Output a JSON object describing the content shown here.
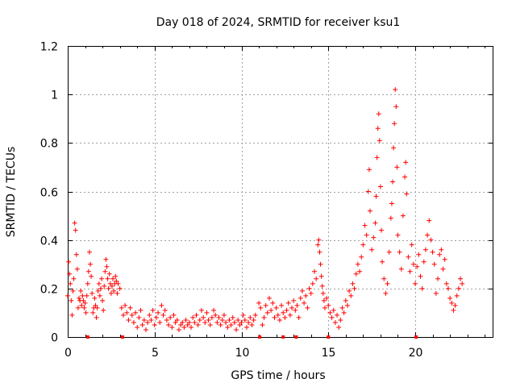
{
  "chart_data": {
    "type": "scatter",
    "title": "Day 018 of 2024, SRMTID for receiver ksu1",
    "xlabel": "GPS time / hours",
    "ylabel": "SRMTID / TECUs",
    "xlim": [
      0,
      24.5
    ],
    "ylim": [
      0,
      1.2
    ],
    "xticks": [
      0,
      5,
      10,
      15,
      20
    ],
    "xtick_labels": [
      "0",
      "5",
      "10",
      "15",
      "20"
    ],
    "yticks": [
      0,
      0.2,
      0.4,
      0.6,
      0.8,
      1.0,
      1.2
    ],
    "ytick_labels": [
      "0",
      "0.2",
      "0.4",
      "0.6",
      "0.8",
      "1",
      "1.2"
    ],
    "grid": true,
    "marker": "+",
    "color": "#ff0000",
    "series": [
      {
        "name": "SRMTID",
        "points": [
          [
            0.0,
            0.17
          ],
          [
            0.05,
            0.31
          ],
          [
            0.1,
            0.26
          ],
          [
            0.15,
            0.22
          ],
          [
            0.2,
            0.15
          ],
          [
            0.25,
            0.09
          ],
          [
            0.3,
            0.19
          ],
          [
            0.35,
            0.24
          ],
          [
            0.4,
            0.47
          ],
          [
            0.45,
            0.44
          ],
          [
            0.5,
            0.34
          ],
          [
            0.55,
            0.28
          ],
          [
            0.6,
            0.12
          ],
          [
            0.65,
            0.16
          ],
          [
            0.7,
            0.15
          ],
          [
            0.75,
            0.19
          ],
          [
            0.8,
            0.13
          ],
          [
            0.85,
            0.17
          ],
          [
            0.9,
            0.15
          ],
          [
            0.95,
            0.12
          ],
          [
            1.0,
            0.14
          ],
          [
            1.05,
            0.1
          ],
          [
            1.1,
            0.17
          ],
          [
            1.15,
            0.22
          ],
          [
            1.2,
            0.27
          ],
          [
            1.25,
            0.35
          ],
          [
            1.3,
            0.3
          ],
          [
            1.35,
            0.25
          ],
          [
            1.4,
            0.18
          ],
          [
            1.45,
            0.1
          ],
          [
            1.5,
            0.12
          ],
          [
            1.55,
            0.16
          ],
          [
            1.6,
            0.13
          ],
          [
            1.65,
            0.08
          ],
          [
            1.7,
            0.12
          ],
          [
            1.75,
            0.19
          ],
          [
            1.8,
            0.22
          ],
          [
            1.85,
            0.17
          ],
          [
            1.9,
            0.2
          ],
          [
            1.95,
            0.24
          ],
          [
            2.0,
            0.15
          ],
          [
            2.05,
            0.11
          ],
          [
            2.1,
            0.21
          ],
          [
            2.15,
            0.27
          ],
          [
            2.2,
            0.32
          ],
          [
            2.25,
            0.29
          ],
          [
            2.3,
            0.24
          ],
          [
            2.35,
            0.2
          ],
          [
            2.4,
            0.26
          ],
          [
            2.45,
            0.22
          ],
          [
            2.5,
            0.18
          ],
          [
            2.55,
            0.21
          ],
          [
            2.6,
            0.24
          ],
          [
            2.65,
            0.19
          ],
          [
            2.7,
            0.22
          ],
          [
            2.75,
            0.25
          ],
          [
            2.8,
            0.23
          ],
          [
            2.85,
            0.18
          ],
          [
            2.9,
            0.22
          ],
          [
            3.0,
            0.2
          ],
          [
            3.1,
            0.12
          ],
          [
            3.2,
            0.09
          ],
          [
            3.3,
            0.13
          ],
          [
            3.4,
            0.1
          ],
          [
            3.5,
            0.07
          ],
          [
            3.6,
            0.12
          ],
          [
            3.7,
            0.09
          ],
          [
            3.8,
            0.06
          ],
          [
            3.9,
            0.1
          ],
          [
            4.0,
            0.04
          ],
          [
            4.1,
            0.08
          ],
          [
            4.2,
            0.11
          ],
          [
            4.3,
            0.05
          ],
          [
            4.4,
            0.07
          ],
          [
            4.5,
            0.03
          ],
          [
            4.6,
            0.06
          ],
          [
            4.7,
            0.09
          ],
          [
            4.8,
            0.07
          ],
          [
            4.9,
            0.11
          ],
          [
            5.0,
            0.05
          ],
          [
            5.1,
            0.08
          ],
          [
            5.2,
            0.1
          ],
          [
            5.3,
            0.06
          ],
          [
            5.4,
            0.13
          ],
          [
            5.5,
            0.09
          ],
          [
            5.6,
            0.11
          ],
          [
            5.7,
            0.07
          ],
          [
            5.8,
            0.05
          ],
          [
            5.9,
            0.08
          ],
          [
            6.0,
            0.04
          ],
          [
            6.1,
            0.09
          ],
          [
            6.2,
            0.06
          ],
          [
            6.3,
            0.07
          ],
          [
            6.4,
            0.03
          ],
          [
            6.5,
            0.05
          ],
          [
            6.6,
            0.06
          ],
          [
            6.7,
            0.04
          ],
          [
            6.8,
            0.07
          ],
          [
            6.9,
            0.05
          ],
          [
            7.0,
            0.06
          ],
          [
            7.1,
            0.04
          ],
          [
            7.2,
            0.08
          ],
          [
            7.3,
            0.06
          ],
          [
            7.4,
            0.09
          ],
          [
            7.5,
            0.05
          ],
          [
            7.6,
            0.07
          ],
          [
            7.7,
            0.11
          ],
          [
            7.8,
            0.08
          ],
          [
            7.9,
            0.06
          ],
          [
            8.0,
            0.1
          ],
          [
            8.1,
            0.07
          ],
          [
            8.2,
            0.05
          ],
          [
            8.3,
            0.08
          ],
          [
            8.4,
            0.11
          ],
          [
            8.5,
            0.09
          ],
          [
            8.6,
            0.06
          ],
          [
            8.7,
            0.08
          ],
          [
            8.8,
            0.05
          ],
          [
            8.9,
            0.07
          ],
          [
            9.0,
            0.09
          ],
          [
            9.1,
            0.06
          ],
          [
            9.2,
            0.04
          ],
          [
            9.3,
            0.07
          ],
          [
            9.4,
            0.05
          ],
          [
            9.5,
            0.08
          ],
          [
            9.6,
            0.06
          ],
          [
            9.7,
            0.03
          ],
          [
            9.8,
            0.07
          ],
          [
            9.9,
            0.05
          ],
          [
            10.0,
            0.06
          ],
          [
            10.1,
            0.09
          ],
          [
            10.2,
            0.07
          ],
          [
            10.3,
            0.04
          ],
          [
            10.4,
            0.06
          ],
          [
            10.5,
            0.08
          ],
          [
            10.6,
            0.05
          ],
          [
            10.7,
            0.07
          ],
          [
            10.8,
            0.09
          ],
          [
            11.0,
            0.14
          ],
          [
            11.1,
            0.12
          ],
          [
            11.2,
            0.05
          ],
          [
            11.3,
            0.08
          ],
          [
            11.4,
            0.13
          ],
          [
            11.5,
            0.1
          ],
          [
            11.6,
            0.16
          ],
          [
            11.7,
            0.11
          ],
          [
            11.8,
            0.14
          ],
          [
            11.9,
            0.08
          ],
          [
            12.0,
            0.12
          ],
          [
            12.1,
            0.09
          ],
          [
            12.2,
            0.07
          ],
          [
            12.3,
            0.13
          ],
          [
            12.4,
            0.1
          ],
          [
            12.5,
            0.08
          ],
          [
            12.6,
            0.11
          ],
          [
            12.7,
            0.14
          ],
          [
            12.8,
            0.09
          ],
          [
            12.9,
            0.12
          ],
          [
            13.0,
            0.15
          ],
          [
            13.1,
            0.11
          ],
          [
            13.2,
            0.13
          ],
          [
            13.3,
            0.08
          ],
          [
            13.4,
            0.16
          ],
          [
            13.5,
            0.19
          ],
          [
            13.6,
            0.14
          ],
          [
            13.7,
            0.17
          ],
          [
            13.8,
            0.12
          ],
          [
            13.9,
            0.2
          ],
          [
            14.0,
            0.18
          ],
          [
            14.1,
            0.22
          ],
          [
            14.2,
            0.27
          ],
          [
            14.3,
            0.24
          ],
          [
            14.4,
            0.38
          ],
          [
            14.45,
            0.4
          ],
          [
            14.5,
            0.35
          ],
          [
            14.55,
            0.3
          ],
          [
            14.6,
            0.25
          ],
          [
            14.65,
            0.21
          ],
          [
            14.7,
            0.18
          ],
          [
            14.75,
            0.15
          ],
          [
            14.8,
            0.12
          ],
          [
            14.9,
            0.16
          ],
          [
            15.0,
            0.13
          ],
          [
            15.1,
            0.1
          ],
          [
            15.2,
            0.08
          ],
          [
            15.3,
            0.11
          ],
          [
            15.4,
            0.06
          ],
          [
            15.5,
            0.09
          ],
          [
            15.6,
            0.04
          ],
          [
            15.7,
            0.07
          ],
          [
            15.8,
            0.12
          ],
          [
            15.9,
            0.1
          ],
          [
            16.0,
            0.15
          ],
          [
            16.1,
            0.13
          ],
          [
            16.2,
            0.19
          ],
          [
            16.3,
            0.17
          ],
          [
            16.4,
            0.22
          ],
          [
            16.5,
            0.2
          ],
          [
            16.6,
            0.26
          ],
          [
            16.7,
            0.3
          ],
          [
            16.8,
            0.27
          ],
          [
            16.9,
            0.33
          ],
          [
            17.0,
            0.38
          ],
          [
            17.1,
            0.46
          ],
          [
            17.2,
            0.42
          ],
          [
            17.3,
            0.6
          ],
          [
            17.35,
            0.69
          ],
          [
            17.4,
            0.52
          ],
          [
            17.5,
            0.36
          ],
          [
            17.6,
            0.41
          ],
          [
            17.7,
            0.47
          ],
          [
            17.75,
            0.58
          ],
          [
            17.8,
            0.74
          ],
          [
            17.85,
            0.86
          ],
          [
            17.9,
            0.92
          ],
          [
            17.95,
            0.81
          ],
          [
            18.0,
            0.62
          ],
          [
            18.05,
            0.44
          ],
          [
            18.1,
            0.31
          ],
          [
            18.2,
            0.24
          ],
          [
            18.3,
            0.18
          ],
          [
            18.4,
            0.22
          ],
          [
            18.5,
            0.35
          ],
          [
            18.6,
            0.49
          ],
          [
            18.65,
            0.55
          ],
          [
            18.7,
            0.64
          ],
          [
            18.75,
            0.78
          ],
          [
            18.8,
            0.88
          ],
          [
            18.85,
            1.02
          ],
          [
            18.9,
            0.95
          ],
          [
            18.95,
            0.7
          ],
          [
            19.0,
            0.42
          ],
          [
            19.1,
            0.35
          ],
          [
            19.2,
            0.28
          ],
          [
            19.3,
            0.5
          ],
          [
            19.4,
            0.66
          ],
          [
            19.45,
            0.72
          ],
          [
            19.5,
            0.59
          ],
          [
            19.6,
            0.33
          ],
          [
            19.7,
            0.27
          ],
          [
            19.8,
            0.38
          ],
          [
            19.9,
            0.3
          ],
          [
            20.0,
            0.22
          ],
          [
            20.1,
            0.29
          ],
          [
            20.2,
            0.34
          ],
          [
            20.3,
            0.25
          ],
          [
            20.4,
            0.2
          ],
          [
            20.5,
            0.31
          ],
          [
            20.6,
            0.36
          ],
          [
            20.7,
            0.42
          ],
          [
            20.8,
            0.48
          ],
          [
            20.9,
            0.4
          ],
          [
            21.0,
            0.35
          ],
          [
            21.1,
            0.3
          ],
          [
            21.2,
            0.18
          ],
          [
            21.3,
            0.24
          ],
          [
            21.4,
            0.34
          ],
          [
            21.5,
            0.36
          ],
          [
            21.6,
            0.28
          ],
          [
            21.7,
            0.32
          ],
          [
            21.8,
            0.22
          ],
          [
            21.9,
            0.2
          ],
          [
            22.0,
            0.16
          ],
          [
            22.1,
            0.14
          ],
          [
            22.2,
            0.11
          ],
          [
            22.3,
            0.13
          ],
          [
            22.4,
            0.17
          ],
          [
            22.5,
            0.2
          ],
          [
            22.6,
            0.24
          ],
          [
            22.7,
            0.22
          ]
        ]
      }
    ],
    "zero_markers": [
      1.15,
      3.15,
      11.05,
      12.4,
      13.15,
      15.0,
      20.05
    ]
  }
}
